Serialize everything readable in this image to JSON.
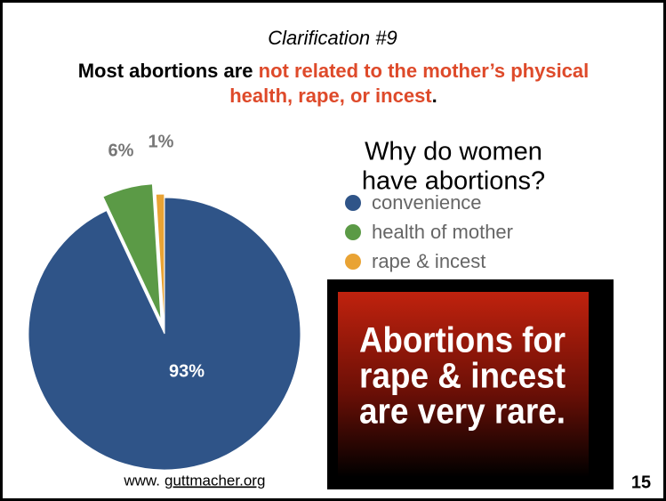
{
  "chart_data": {
    "type": "pie",
    "title": "Clarification #9",
    "headline": {
      "lead": "Most abortions are",
      "highlight": "not related to the mother’s physical health, rape, or incest",
      "end": "."
    },
    "legend_title": [
      "Why do women",
      "have abortions?"
    ],
    "categories": [
      "convenience",
      "health of mother",
      "rape & incest"
    ],
    "values": [
      93,
      6,
      1
    ],
    "value_labels": [
      "93%",
      "6%",
      "1%"
    ],
    "colors": [
      "#2f5488",
      "#5b9a46",
      "#e9a334"
    ],
    "callout": [
      "Abortions for",
      "rape & incest",
      "are very rare."
    ],
    "source": {
      "prefix": "www.",
      "link": "guttmacher.org"
    },
    "page_number": "15"
  }
}
